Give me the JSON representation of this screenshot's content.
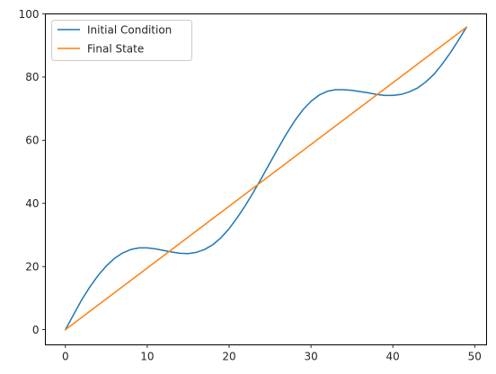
{
  "chart_data": {
    "type": "line",
    "title": "",
    "xlabel": "",
    "ylabel": "",
    "xlim": [
      -2.45,
      51.45
    ],
    "ylim": [
      -4.8,
      100.0
    ],
    "grid": false,
    "legend_position": "top-left",
    "x_ticks": [
      0,
      10,
      20,
      30,
      40,
      50
    ],
    "y_ticks": [
      0,
      20,
      40,
      60,
      80,
      100
    ],
    "x_tick_labels": [
      "0",
      "10",
      "20",
      "30",
      "40",
      "50"
    ],
    "y_tick_labels": [
      "0",
      "20",
      "40",
      "60",
      "80",
      "100"
    ],
    "series": [
      {
        "name": "Initial Condition",
        "color": "#1f77b4",
        "x": [
          0,
          1,
          2,
          3,
          4,
          5,
          6,
          7,
          8,
          9,
          10,
          11,
          12,
          13,
          14,
          15,
          16,
          17,
          18,
          19,
          20,
          21,
          22,
          23,
          24,
          25,
          26,
          27,
          28,
          29,
          30,
          31,
          32,
          33,
          34,
          35,
          36,
          37,
          38,
          39,
          40,
          41,
          42,
          43,
          44,
          45,
          46,
          47,
          48,
          49
        ],
        "values": [
          0.0,
          4.8,
          9.5,
          13.6,
          17.2,
          20.2,
          22.6,
          24.3,
          25.4,
          25.9,
          25.9,
          25.6,
          25.1,
          24.6,
          24.2,
          24.1,
          24.5,
          25.4,
          26.9,
          29.1,
          32.0,
          35.5,
          39.4,
          43.7,
          48.2,
          52.9,
          57.5,
          62.0,
          66.1,
          69.6,
          72.3,
          74.3,
          75.5,
          76.0,
          76.0,
          75.8,
          75.4,
          75.0,
          74.5,
          74.2,
          74.2,
          74.5,
          75.3,
          76.5,
          78.4,
          80.8,
          84.0,
          87.6,
          91.6,
          95.8
        ]
      },
      {
        "name": "Final State",
        "color": "#ff7f0e",
        "x": [
          0,
          49
        ],
        "values": [
          0.0,
          95.8
        ]
      }
    ]
  }
}
